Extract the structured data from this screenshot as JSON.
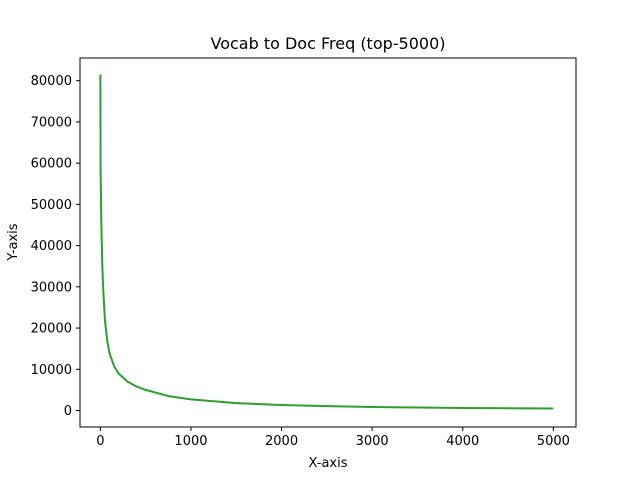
{
  "chart_data": {
    "type": "line",
    "title": "Vocab to Doc Freq (top-5000)",
    "xlabel": "X-axis",
    "ylabel": "Y-axis",
    "xlim": [
      -225,
      5250
    ],
    "ylim": [
      -4000,
      85500
    ],
    "xticks": [
      0,
      1000,
      2000,
      3000,
      4000,
      5000
    ],
    "yticks": [
      0,
      10000,
      20000,
      30000,
      40000,
      50000,
      60000,
      70000,
      80000
    ],
    "grid": false,
    "series": [
      {
        "color": "#2ca02c",
        "x": [
          0,
          2,
          5,
          10,
          20,
          30,
          50,
          75,
          100,
          150,
          200,
          300,
          400,
          500,
          750,
          1000,
          1500,
          2000,
          2500,
          3000,
          3500,
          4000,
          4500,
          5000
        ],
        "y": [
          81500,
          58000,
          54000,
          46000,
          36000,
          30000,
          22000,
          17000,
          14000,
          10800,
          9000,
          7000,
          5800,
          5000,
          3500,
          2700,
          1800,
          1350,
          1050,
          850,
          720,
          620,
          540,
          480
        ]
      }
    ]
  }
}
